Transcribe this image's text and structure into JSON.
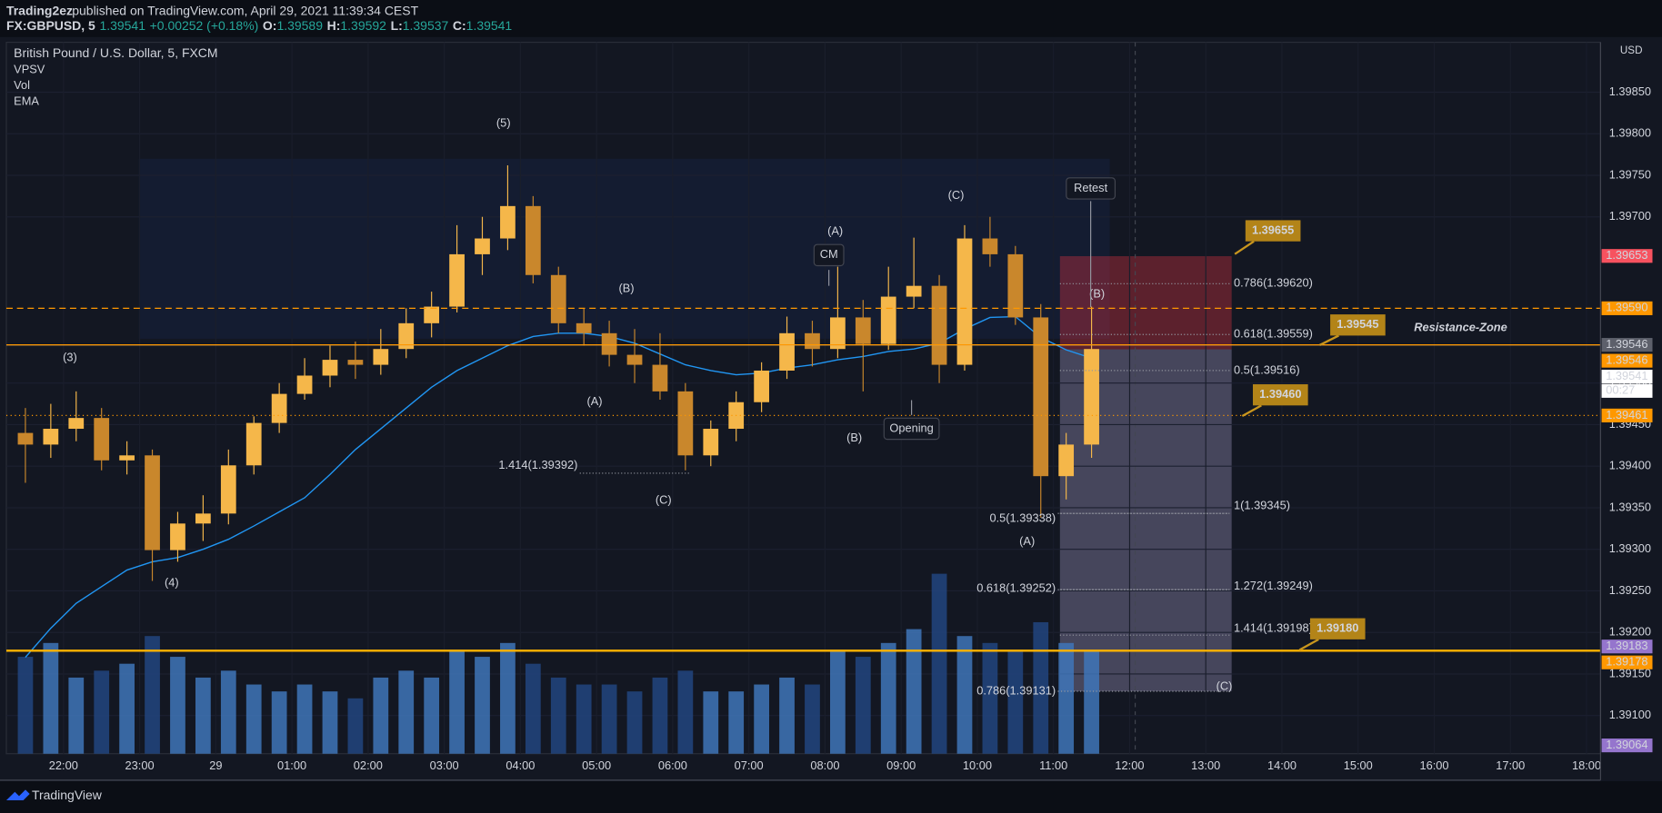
{
  "header": {
    "publisher": "Trading2ez",
    "published": "published on TradingView.com, April 29, 2021 11:39:34 CEST",
    "symbol": "FX:GBPUSD, 5",
    "last": "1.39541",
    "change": "+0.00252 (+0.18%)",
    "ohlc": [
      {
        "key": "O:",
        "value": "1.39589"
      },
      {
        "key": "H:",
        "value": "1.39592"
      },
      {
        "key": "L:",
        "value": "1.39537"
      },
      {
        "key": "C:",
        "value": "1.39541"
      }
    ]
  },
  "chart_data": {
    "type": "candlestick",
    "title": "British Pound / U.S. Dollar, 5, FXCM",
    "indicators": [
      "VPSV",
      "Vol",
      "EMA"
    ],
    "x": [
      "21:20",
      "21:40",
      "22:00",
      "22:20",
      "22:40",
      "23:00",
      "23:20",
      "23:40",
      "00:00",
      "00:20",
      "00:40",
      "01:00",
      "01:20",
      "01:40",
      "02:00",
      "02:20",
      "02:40",
      "03:00",
      "03:20",
      "03:40",
      "04:00",
      "04:20",
      "04:40",
      "05:00",
      "05:20",
      "05:40",
      "06:00",
      "06:20",
      "06:40",
      "07:00",
      "07:20",
      "07:40",
      "08:00",
      "08:20",
      "08:40",
      "09:00",
      "09:20",
      "09:40",
      "10:00",
      "10:20",
      "10:40",
      "11:00",
      "11:20"
    ],
    "open": [
      1.3944,
      1.39426,
      1.39445,
      1.39458,
      1.39407,
      1.39413,
      1.39299,
      1.39331,
      1.39343,
      1.39401,
      1.39452,
      1.39487,
      1.39509,
      1.39528,
      1.39522,
      1.39541,
      1.39572,
      1.39592,
      1.39655,
      1.39674,
      1.39713,
      1.3963,
      1.39572,
      1.3956,
      1.39534,
      1.39522,
      1.3949,
      1.39413,
      1.39445,
      1.39477,
      1.39515,
      1.3956,
      1.39541,
      1.39579,
      1.39547,
      1.39604,
      1.39617,
      1.39522,
      1.39674,
      1.39655,
      1.39579,
      1.39388,
      1.39426
    ],
    "high": [
      1.3947,
      1.39475,
      1.3949,
      1.3947,
      1.3943,
      1.3942,
      1.39345,
      1.39365,
      1.3942,
      1.3946,
      1.395,
      1.3953,
      1.39545,
      1.3955,
      1.39565,
      1.3959,
      1.3961,
      1.3969,
      1.397,
      1.39762,
      1.39725,
      1.3964,
      1.3959,
      1.39575,
      1.39565,
      1.3956,
      1.395,
      1.39455,
      1.3949,
      1.39525,
      1.3958,
      1.39575,
      1.3964,
      1.396,
      1.3964,
      1.39675,
      1.3963,
      1.3969,
      1.397,
      1.39665,
      1.39595,
      1.3944,
      1.39592
    ],
    "low": [
      1.3938,
      1.3941,
      1.3943,
      1.39395,
      1.3939,
      1.39262,
      1.39285,
      1.3931,
      1.3933,
      1.3939,
      1.3944,
      1.3948,
      1.39495,
      1.39505,
      1.3951,
      1.3953,
      1.39555,
      1.39585,
      1.3963,
      1.3966,
      1.3962,
      1.3956,
      1.39545,
      1.3952,
      1.395,
      1.3948,
      1.39395,
      1.394,
      1.3943,
      1.39465,
      1.39505,
      1.3952,
      1.3953,
      1.3949,
      1.3954,
      1.3959,
      1.395,
      1.39515,
      1.3964,
      1.3957,
      1.39338,
      1.3936,
      1.3941
    ],
    "close": [
      1.39426,
      1.39445,
      1.39458,
      1.39407,
      1.39413,
      1.39299,
      1.39331,
      1.39343,
      1.39401,
      1.39452,
      1.39487,
      1.39509,
      1.39528,
      1.39522,
      1.39541,
      1.39572,
      1.39592,
      1.39655,
      1.39674,
      1.39713,
      1.3963,
      1.39572,
      1.3956,
      1.39534,
      1.39522,
      1.3949,
      1.39413,
      1.39445,
      1.39477,
      1.39515,
      1.3956,
      1.39541,
      1.39579,
      1.39547,
      1.39604,
      1.39617,
      1.39522,
      1.39674,
      1.39655,
      1.39579,
      1.39388,
      1.39426,
      1.39541
    ],
    "up_color": "#f5b74a",
    "down_color": "#c9872c",
    "volume": [
      70,
      80,
      55,
      60,
      65,
      85,
      70,
      55,
      60,
      50,
      45,
      50,
      45,
      40,
      55,
      60,
      55,
      75,
      70,
      80,
      65,
      55,
      50,
      50,
      45,
      55,
      60,
      45,
      45,
      50,
      55,
      50,
      75,
      70,
      80,
      90,
      130,
      85,
      80,
      75,
      95,
      80,
      75
    ],
    "volume_up_color": "#3f75b8",
    "volume_down_color": "#22457f",
    "ema": {
      "color": "#2196f3",
      "values": [
        1.3917,
        1.39205,
        1.39235,
        1.39255,
        1.39275,
        1.39285,
        1.3929,
        1.393,
        1.39312,
        1.39328,
        1.39345,
        1.39362,
        1.3939,
        1.3942,
        1.39445,
        1.3947,
        1.39495,
        1.39515,
        1.3953,
        1.39545,
        1.39556,
        1.3956,
        1.3956,
        1.39556,
        1.39548,
        1.39535,
        1.39522,
        1.39515,
        1.3951,
        1.39512,
        1.39518,
        1.39522,
        1.39528,
        1.39532,
        1.39538,
        1.39541,
        1.39548,
        1.39565,
        1.39579,
        1.3958,
        1.39555,
        1.3954,
        1.3953
      ]
    },
    "xlim": [
      "21:15",
      "18:11"
    ],
    "xticks": [
      "22:00",
      "23:00",
      {
        "value": "00:00",
        "label": "29"
      },
      "01:00",
      "02:00",
      "03:00",
      "04:00",
      "05:00",
      "06:00",
      "07:00",
      "08:00",
      "09:00",
      "10:00",
      "11:00",
      "12:00",
      "13:00",
      "14:00",
      "15:00",
      "16:00",
      "17:00",
      "18:00"
    ],
    "ylim": [
      1.39054,
      1.3991
    ],
    "yticks": [
      {
        "value": 1.3985,
        "label": "1.39850"
      },
      {
        "value": 1.398,
        "label": "1.39800"
      },
      {
        "value": 1.3975,
        "label": "1.39750"
      },
      {
        "value": 1.397,
        "label": "1.39700"
      },
      {
        "value": 1.395,
        "label": "1.39500"
      },
      {
        "value": 1.3945,
        "label": "1.39450"
      },
      {
        "value": 1.394,
        "label": "1.39400"
      },
      {
        "value": 1.3935,
        "label": "1.39350"
      },
      {
        "value": 1.393,
        "label": "1.39300"
      },
      {
        "value": 1.3925,
        "label": "1.39250"
      },
      {
        "value": 1.392,
        "label": "1.39200"
      },
      {
        "value": 1.3915,
        "label": "1.39150"
      },
      {
        "value": 1.391,
        "label": "1.39100"
      }
    ],
    "y_unit": "USD",
    "grid": true,
    "price_markers": [
      {
        "value": 1.39653,
        "color": "#f7525f",
        "line": "none"
      },
      {
        "value": 1.3959,
        "label": "1.39590",
        "color": "#ff9800",
        "line": "dashed"
      },
      {
        "value": 1.39546,
        "color": "#5d606b",
        "line": "solid"
      },
      {
        "value": 1.39546,
        "color": "#ff9800",
        "line": "solid"
      },
      {
        "value": 1.39541,
        "color": "#ffffff",
        "line": "none"
      },
      {
        "value": 1.39461,
        "color": "#ff9800",
        "line": "dotted"
      },
      {
        "value": 1.39183,
        "color": "#9575cd",
        "line": "none"
      },
      {
        "value": 1.39178,
        "color": "#ff9800",
        "line": "thick"
      },
      {
        "value": 1.39064,
        "color": "#9575cd",
        "line": "none"
      }
    ],
    "countdown": "00:27"
  },
  "annotations": {
    "waves": [
      "(5)",
      "(3)",
      "(4)",
      "(A)",
      "(B)",
      "(A)",
      "(C)",
      "(B)",
      "(C)",
      "(B)",
      "(A)",
      "(C)"
    ],
    "boxes": [
      "CM",
      "Opening",
      "Retest"
    ],
    "fib": [
      "1.414(1.39392)",
      "0.5(1.39338)",
      "0.618(1.39252)",
      "0.786(1.39131)",
      "0.786(1.39620)",
      "0.618(1.39559)",
      "0.5(1.39516)",
      "1(1.39345)",
      "1.272(1.39249)",
      "1.414(1.39198)"
    ],
    "callouts": [
      "1.39655",
      "1.39545",
      "1.39460",
      "1.39180"
    ],
    "zone_label": "Resistance-Zone"
  },
  "footer": {
    "brand": "TradingView"
  }
}
